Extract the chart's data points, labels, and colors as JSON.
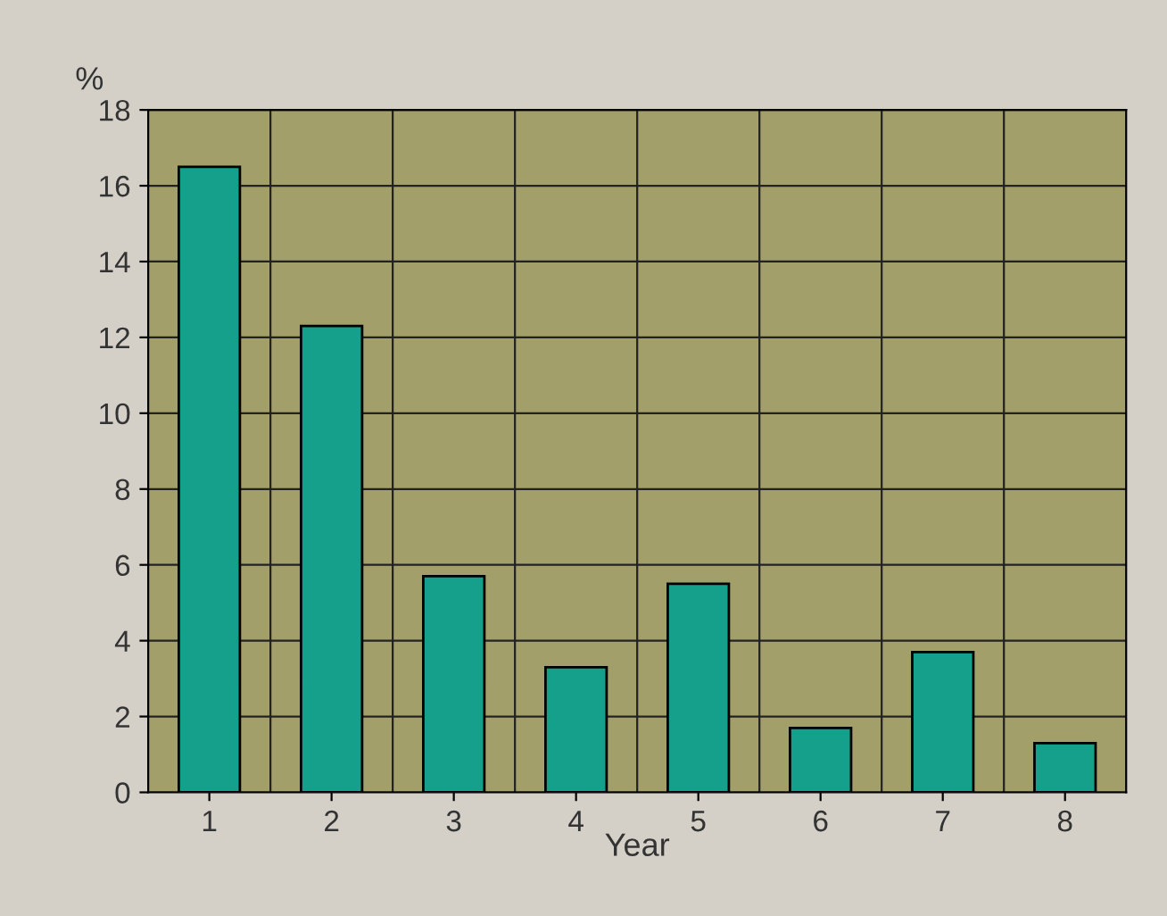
{
  "chart_data": {
    "type": "bar",
    "xlabel": "Year",
    "ylabel": "%",
    "categories": [
      "1",
      "2",
      "3",
      "4",
      "5",
      "6",
      "7",
      "8"
    ],
    "values": [
      16.5,
      12.3,
      5.7,
      3.3,
      5.5,
      1.7,
      3.7,
      1.3
    ],
    "color": "#14a08a",
    "ylim": [
      0,
      18
    ],
    "yticks": [
      0,
      2,
      4,
      6,
      8,
      10,
      12,
      14,
      16,
      18
    ],
    "grid": true
  }
}
